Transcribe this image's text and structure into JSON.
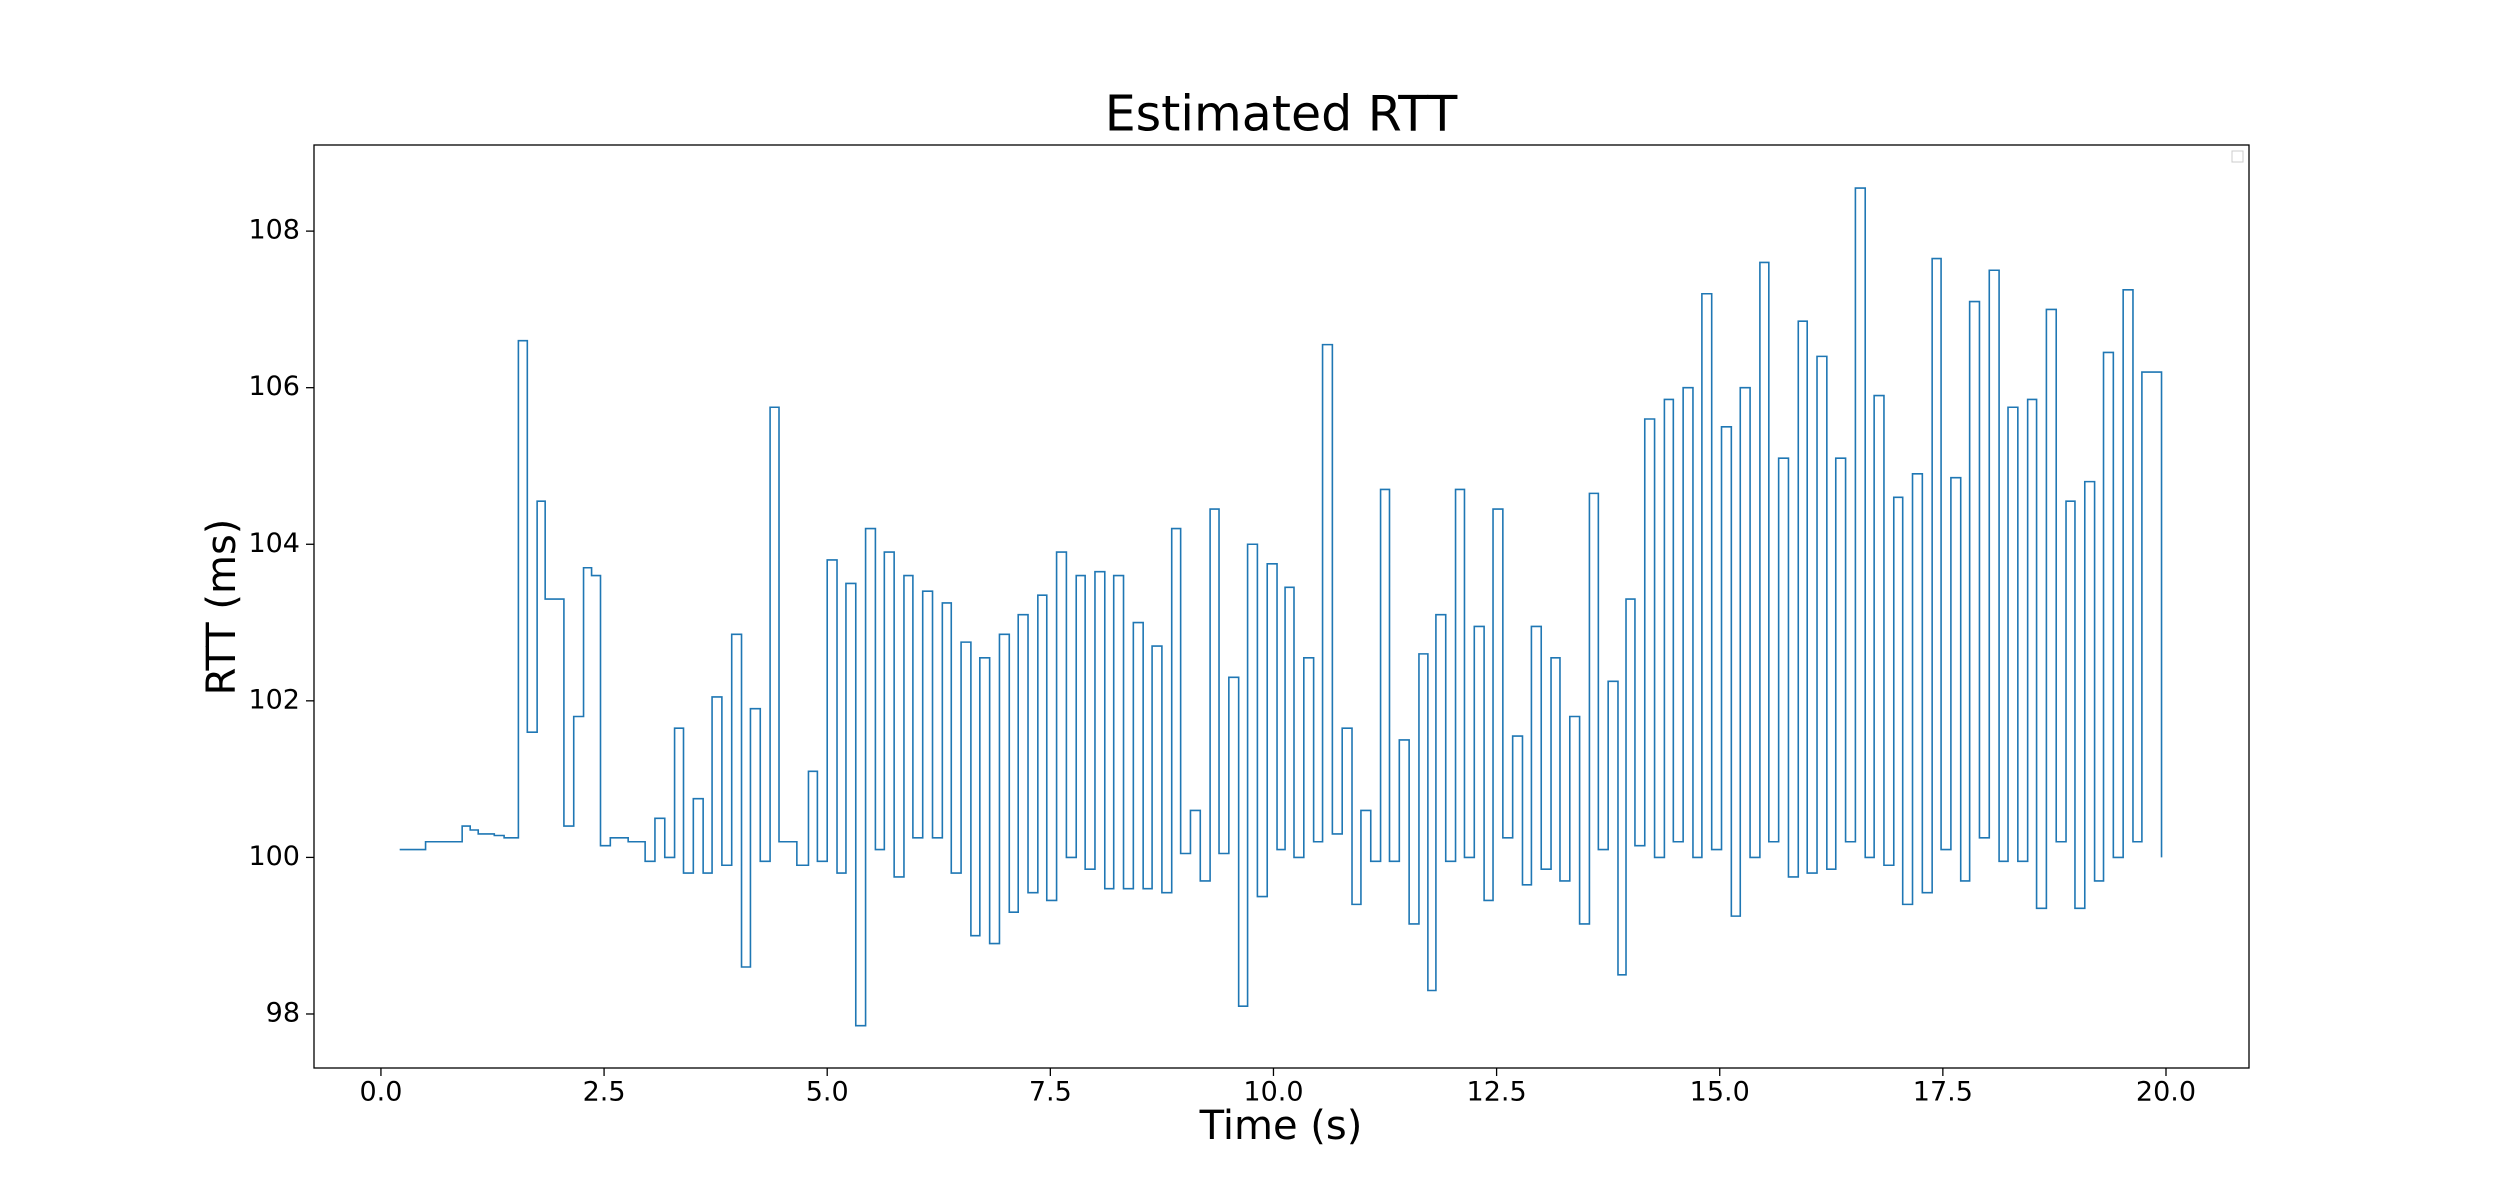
{
  "chart_data": {
    "type": "step",
    "title": "Estimated RTT",
    "x_label": "Time (s)",
    "y_label": "RTT (ms)",
    "xlim": [
      -0.75,
      20.93
    ],
    "ylim": [
      97.31,
      109.1
    ],
    "xticks": [
      {
        "value": 0,
        "label": "0.0"
      },
      2.5,
      {
        "value": 5,
        "label": "5.0"
      },
      7.5,
      {
        "value": 10,
        "label": "10.0"
      },
      12.5,
      {
        "value": 15,
        "label": "15.0"
      },
      17.5,
      {
        "value": 20,
        "label": "20.0"
      }
    ],
    "yticks": [
      98,
      100,
      102,
      104,
      106,
      108
    ],
    "grid": false,
    "series": [
      {
        "color": "#1f77b4",
        "x": [
          0.21,
          0.5,
          0.91,
          1.0,
          1.09,
          1.27,
          1.38,
          1.54,
          1.64,
          1.75,
          1.84,
          2.05,
          2.16,
          2.27,
          2.36,
          2.46,
          2.57,
          2.77,
          2.96,
          3.07,
          3.18,
          3.29,
          3.39,
          3.5,
          3.61,
          3.71,
          3.82,
          3.93,
          4.04,
          4.14,
          4.25,
          4.36,
          4.46,
          4.66,
          4.79,
          4.89,
          5.0,
          5.11,
          5.21,
          5.32,
          5.43,
          5.54,
          5.64,
          5.75,
          5.86,
          5.96,
          6.07,
          6.18,
          6.29,
          6.39,
          6.5,
          6.61,
          6.71,
          6.82,
          6.93,
          7.04,
          7.14,
          7.25,
          7.36,
          7.46,
          7.57,
          7.68,
          7.79,
          7.89,
          8.0,
          8.11,
          8.21,
          8.32,
          8.43,
          8.54,
          8.64,
          8.75,
          8.86,
          8.96,
          9.07,
          9.18,
          9.29,
          9.39,
          9.5,
          9.61,
          9.71,
          9.82,
          9.93,
          10.04,
          10.13,
          10.23,
          10.34,
          10.45,
          10.55,
          10.66,
          10.77,
          10.88,
          10.98,
          11.09,
          11.2,
          11.3,
          11.41,
          11.52,
          11.63,
          11.73,
          11.82,
          11.93,
          12.04,
          12.14,
          12.25,
          12.36,
          12.46,
          12.57,
          12.68,
          12.79,
          12.89,
          13.0,
          13.11,
          13.21,
          13.32,
          13.43,
          13.54,
          13.64,
          13.75,
          13.86,
          13.95,
          14.05,
          14.16,
          14.27,
          14.38,
          14.48,
          14.59,
          14.7,
          14.8,
          14.91,
          15.02,
          15.13,
          15.23,
          15.34,
          15.45,
          15.55,
          15.66,
          15.77,
          15.88,
          15.98,
          16.09,
          16.2,
          16.3,
          16.41,
          16.52,
          16.63,
          16.73,
          16.84,
          16.95,
          17.05,
          17.16,
          17.27,
          17.38,
          17.48,
          17.59,
          17.7,
          17.8,
          17.91,
          18.02,
          18.13,
          18.23,
          18.34,
          18.45,
          18.55,
          18.66,
          18.77,
          18.88,
          18.98,
          19.09,
          19.2,
          19.3,
          19.41,
          19.52,
          19.63,
          19.73,
          19.95
        ],
        "values": [
          100.1,
          100.2,
          100.4,
          100.35,
          100.3,
          100.28,
          100.25,
          106.6,
          101.6,
          104.55,
          103.3,
          100.4,
          101.8,
          103.7,
          103.6,
          100.15,
          100.25,
          100.2,
          99.95,
          100.5,
          100,
          101.65,
          99.8,
          100.75,
          99.8,
          102.05,
          99.9,
          102.85,
          98.6,
          101.9,
          99.95,
          105.75,
          100.2,
          99.9,
          101.1,
          99.95,
          103.8,
          99.8,
          103.5,
          97.85,
          104.2,
          100.1,
          103.9,
          99.75,
          103.6,
          100.25,
          103.4,
          100.25,
          103.25,
          99.8,
          102.75,
          99,
          102.55,
          98.9,
          102.85,
          99.3,
          103.1,
          99.55,
          103.35,
          99.45,
          103.9,
          100,
          103.6,
          99.85,
          103.65,
          99.6,
          103.6,
          99.6,
          103,
          99.6,
          102.7,
          99.55,
          104.2,
          100.05,
          100.6,
          99.7,
          104.45,
          100.05,
          102.3,
          98.1,
          104,
          99.5,
          103.75,
          100.1,
          103.45,
          100,
          102.55,
          100.2,
          106.55,
          100.3,
          101.65,
          99.4,
          100.6,
          99.95,
          104.7,
          99.95,
          101.5,
          99.15,
          102.6,
          98.3,
          103.1,
          99.95,
          104.7,
          100,
          102.95,
          99.45,
          104.45,
          100.25,
          101.55,
          99.65,
          102.95,
          99.85,
          102.55,
          99.7,
          101.8,
          99.15,
          104.65,
          100.1,
          102.25,
          98.5,
          103.3,
          100.15,
          105.6,
          100,
          105.85,
          100.2,
          106,
          100,
          107.2,
          100.1,
          105.5,
          99.25,
          106,
          100,
          107.6,
          100.2,
          105.1,
          99.75,
          106.85,
          99.8,
          106.4,
          99.85,
          105.1,
          100.2,
          108.55,
          100,
          105.9,
          99.9,
          104.6,
          99.4,
          104.9,
          99.55,
          107.65,
          100.1,
          104.85,
          99.7,
          107.1,
          100.25,
          107.5,
          99.95,
          105.75,
          99.95,
          105.85,
          99.35,
          107,
          100.2,
          104.55,
          99.35,
          104.8,
          99.7,
          106.45,
          100,
          107.25,
          100.2,
          106.2,
          100
        ]
      }
    ]
  }
}
